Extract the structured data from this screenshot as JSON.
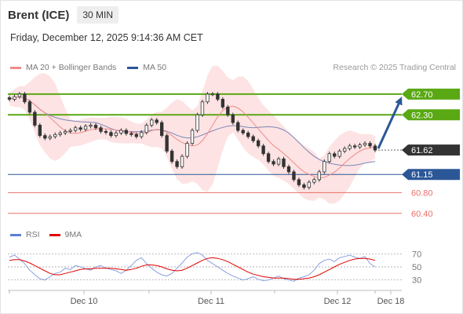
{
  "header": {
    "instrument": "Brent (ICE)",
    "timeframe": "30 MIN",
    "datetime": "Friday, December 12, 2025 9:14:36 AM CET"
  },
  "legend": {
    "ma20_label": "MA 20 + Bollinger Bands",
    "ma20_color": "#f08a8a",
    "ma50_label": "MA 50",
    "ma50_color": "#2b5797",
    "copyright": "Research © 2025 Trading Central"
  },
  "rsi_legend": {
    "rsi_label": "RSI",
    "rsi_color": "#5b7fd6",
    "ma_label": "9MA",
    "ma_color": "#e00000"
  },
  "chart_data": {
    "type": "candlestick",
    "price_range": [
      60.2,
      63.0
    ],
    "current_price": 61.62,
    "levels": [
      {
        "label": "62.70",
        "value": 62.7,
        "kind": "resistance",
        "color": "#59a814"
      },
      {
        "label": "62.30",
        "value": 62.3,
        "kind": "resistance",
        "color": "#59a814"
      },
      {
        "label": "61.62",
        "value": 61.62,
        "kind": "current",
        "color": "#333333"
      },
      {
        "label": "61.15",
        "value": 61.15,
        "kind": "pivot",
        "color": "#2b5797"
      },
      {
        "label": "60.80",
        "value": 60.8,
        "kind": "support",
        "color": "#e8706a"
      },
      {
        "label": "60.40",
        "value": 60.4,
        "kind": "support",
        "color": "#e8706a"
      }
    ],
    "forecast_arrow": {
      "from": 61.62,
      "to": 62.7,
      "color": "#2b5797"
    },
    "x_tick_labels": [
      "Dec 10",
      "Dec 11",
      "Dec 12",
      "Dec 18"
    ],
    "closes": [
      62.6,
      62.65,
      62.7,
      62.55,
      62.35,
      62.1,
      61.9,
      61.85,
      61.88,
      61.92,
      61.95,
      61.98,
      62.0,
      62.05,
      62.02,
      62.08,
      62.1,
      62.05,
      61.98,
      61.96,
      61.9,
      61.95,
      62.0,
      61.94,
      61.92,
      61.88,
      61.96,
      62.1,
      62.2,
      62.15,
      61.9,
      61.6,
      61.4,
      61.3,
      61.5,
      61.75,
      62.0,
      62.3,
      62.55,
      62.7,
      62.7,
      62.6,
      62.45,
      62.3,
      62.15,
      62.0,
      61.95,
      61.88,
      61.8,
      61.7,
      61.55,
      61.4,
      61.35,
      61.45,
      61.3,
      61.2,
      61.05,
      60.95,
      60.9,
      61.0,
      61.05,
      61.2,
      61.4,
      61.55,
      61.5,
      61.6,
      61.65,
      61.7,
      61.68,
      61.72,
      61.75,
      61.7,
      61.62
    ],
    "rsi": {
      "range": [
        20,
        80
      ],
      "ticks": [
        70,
        50,
        30
      ],
      "rsi_values": [
        65,
        68,
        62,
        55,
        45,
        38,
        32,
        30,
        35,
        40,
        42,
        48,
        46,
        52,
        50,
        47,
        45,
        50,
        52,
        48,
        46,
        44,
        40,
        45,
        52,
        60,
        64,
        55,
        48,
        42,
        38,
        36,
        40,
        48,
        56,
        65,
        70,
        72,
        68,
        60,
        55,
        50,
        45,
        40,
        36,
        33,
        30,
        32,
        35,
        31,
        29,
        30,
        33,
        36,
        32,
        30,
        28,
        33,
        35,
        38,
        45,
        55,
        60,
        62,
        58,
        64,
        66,
        68,
        65,
        63,
        66,
        55,
        50
      ],
      "ma_values": [
        60,
        61,
        61,
        59,
        56,
        52,
        48,
        44,
        40,
        38,
        38,
        40,
        42,
        44,
        46,
        47,
        47,
        48,
        48,
        48,
        48,
        47,
        46,
        45,
        46,
        48,
        51,
        53,
        53,
        52,
        50,
        47,
        45,
        44,
        45,
        48,
        52,
        56,
        60,
        63,
        64,
        63,
        61,
        58,
        54,
        50,
        46,
        42,
        39,
        37,
        35,
        34,
        33,
        33,
        33,
        32,
        31,
        31,
        32,
        33,
        35,
        38,
        42,
        46,
        50,
        54,
        57,
        60,
        62,
        63,
        63,
        62,
        60
      ]
    }
  }
}
